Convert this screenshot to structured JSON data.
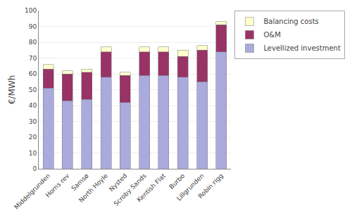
{
  "chart_data": {
    "type": "bar",
    "stacked": true,
    "categories": [
      "Middelgrunden",
      "Horns rev",
      "Samsø",
      "North Hoyle",
      "Nysted",
      "Scroby Sands",
      "Kentish Flat",
      "Burbo",
      "Lillgrunden",
      "Robin rigg"
    ],
    "series": [
      {
        "name": "Levellized investment",
        "color": "#aaaadd",
        "values": [
          51,
          43,
          44,
          58,
          42,
          59,
          59,
          58,
          55,
          74
        ]
      },
      {
        "name": "O&M",
        "color": "#993366",
        "values": [
          12,
          17,
          17,
          16,
          17,
          15,
          15,
          13,
          20,
          17
        ]
      },
      {
        "name": "Balancing costs",
        "color": "#ffffcc",
        "values": [
          3,
          2,
          2,
          3,
          2,
          3,
          3,
          4,
          3,
          2
        ]
      }
    ],
    "ylabel": "€/MWh",
    "ylim": [
      0,
      100
    ],
    "yticks": [
      0,
      10,
      20,
      30,
      40,
      50,
      60,
      70,
      80,
      90,
      100
    ],
    "grid": true,
    "legend": "right"
  }
}
